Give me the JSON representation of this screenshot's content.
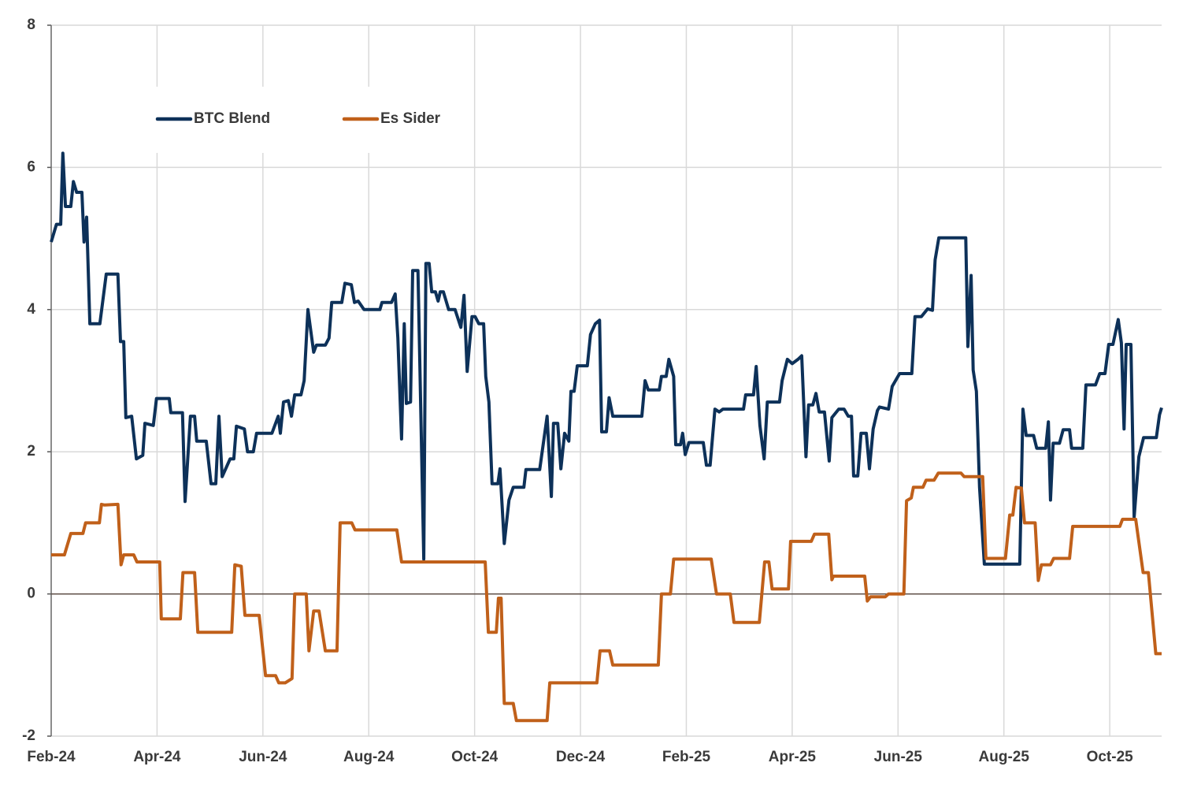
{
  "chart_data": {
    "type": "line",
    "xlim": [
      0,
      20.98
    ],
    "xticks": [
      {
        "value": 0,
        "label": "Feb-24"
      },
      {
        "value": 2,
        "label": "Apr-24"
      },
      {
        "value": 4,
        "label": "Jun-24"
      },
      {
        "value": 6,
        "label": "Aug-24"
      },
      {
        "value": 8,
        "label": "Oct-24"
      },
      {
        "value": 10,
        "label": "Dec-24"
      },
      {
        "value": 12,
        "label": "Feb-25"
      },
      {
        "value": 14,
        "label": "Apr-25"
      },
      {
        "value": 16,
        "label": "Jun-25"
      },
      {
        "value": 18,
        "label": "Aug-25"
      },
      {
        "value": 20,
        "label": "Oct-25"
      }
    ],
    "ylim": [
      -2,
      8
    ],
    "yticks": [
      -2,
      0,
      2,
      4,
      6,
      8
    ],
    "grid": true,
    "series": [
      {
        "name": "BTC Blend",
        "color": "#0d3159",
        "x": [
          0,
          0.1,
          0.18,
          0.22,
          0.27,
          0.37,
          0.42,
          0.48,
          0.58,
          0.62,
          0.67,
          0.73,
          0.92,
          1.04,
          1.26,
          1.31,
          1.37,
          1.41,
          1.52,
          1.61,
          1.73,
          1.77,
          1.93,
          1.99,
          2.23,
          2.26,
          2.48,
          2.53,
          2.63,
          2.71,
          2.75,
          2.93,
          3.02,
          3.11,
          3.17,
          3.23,
          3.38,
          3.45,
          3.5,
          3.65,
          3.71,
          3.82,
          3.88,
          4.17,
          4.29,
          4.33,
          4.39,
          4.48,
          4.54,
          4.6,
          4.72,
          4.78,
          4.85,
          4.96,
          5.01,
          5.18,
          5.25,
          5.3,
          5.49,
          5.55,
          5.67,
          5.73,
          5.8,
          5.91,
          6.21,
          6.25,
          6.43,
          6.5,
          6.55,
          6.62,
          6.67,
          6.71,
          6.79,
          6.83,
          6.93,
          7.04,
          7.08,
          7.14,
          7.19,
          7.26,
          7.31,
          7.35,
          7.41,
          7.51,
          7.63,
          7.74,
          7.8,
          7.86,
          7.95,
          8.01,
          8.08,
          8.17,
          8.21,
          8.27,
          8.33,
          8.44,
          8.48,
          8.56,
          8.65,
          8.73,
          8.93,
          8.97,
          9.23,
          9.37,
          9.45,
          9.49,
          9.57,
          9.63,
          9.7,
          9.78,
          9.82,
          9.88,
          9.94,
          10.13,
          10.19,
          10.28,
          10.36,
          10.4,
          10.49,
          10.54,
          10.61,
          11.16,
          11.22,
          11.28,
          11.49,
          11.53,
          11.62,
          11.67,
          11.76,
          11.8,
          11.89,
          11.93,
          11.98,
          12.05,
          12.32,
          12.38,
          12.45,
          12.54,
          12.62,
          12.69,
          13.08,
          13.12,
          13.27,
          13.32,
          13.39,
          13.47,
          13.53,
          13.76,
          13.81,
          13.91,
          14.0,
          14.11,
          14.18,
          14.26,
          14.31,
          14.39,
          14.45,
          14.51,
          14.61,
          14.7,
          14.75,
          14.88,
          14.98,
          15.06,
          15.12,
          15.16,
          15.24,
          15.3,
          15.4,
          15.46,
          15.53,
          15.61,
          15.65,
          15.82,
          15.89,
          16.03,
          16.26,
          16.32,
          16.44,
          16.56,
          16.65,
          16.7,
          16.77,
          17.28,
          17.32,
          17.38,
          17.42,
          17.48,
          17.54,
          17.63,
          18.3,
          18.36,
          18.42,
          18.56,
          18.62,
          18.79,
          18.84,
          18.88,
          18.93,
          19.05,
          19.12,
          19.24,
          19.28,
          19.49,
          19.55,
          19.73,
          19.81,
          19.91,
          19.98,
          20.06,
          20.16,
          20.22,
          20.27,
          20.31,
          20.4,
          20.46,
          20.55,
          20.64,
          20.88,
          20.94,
          20.98
        ],
        "values": [
          4.95,
          5.2,
          5.2,
          6.2,
          5.45,
          5.45,
          5.8,
          5.65,
          5.65,
          4.95,
          5.3,
          3.8,
          3.8,
          4.5,
          4.5,
          3.55,
          3.55,
          2.48,
          2.5,
          1.9,
          1.95,
          2.4,
          2.37,
          2.75,
          2.75,
          2.55,
          2.55,
          1.3,
          2.5,
          2.5,
          2.15,
          2.15,
          1.55,
          1.55,
          2.5,
          1.65,
          1.9,
          1.9,
          2.36,
          2.32,
          2.0,
          2.0,
          2.26,
          2.26,
          2.5,
          2.26,
          2.7,
          2.72,
          2.5,
          2.8,
          2.8,
          3.0,
          4.0,
          3.4,
          3.5,
          3.5,
          3.6,
          4.1,
          4.1,
          4.37,
          4.35,
          4.1,
          4.12,
          4.0,
          4.0,
          4.1,
          4.1,
          4.22,
          3.6,
          2.18,
          3.8,
          2.68,
          2.7,
          4.55,
          4.55,
          0.49,
          4.65,
          4.65,
          4.25,
          4.25,
          4.12,
          4.25,
          4.25,
          4.0,
          4.0,
          3.75,
          4.2,
          3.13,
          3.9,
          3.9,
          3.8,
          3.8,
          3.06,
          2.7,
          1.55,
          1.55,
          1.76,
          0.71,
          1.32,
          1.5,
          1.5,
          1.75,
          1.75,
          2.5,
          1.37,
          2.4,
          2.4,
          1.76,
          2.26,
          2.15,
          2.85,
          2.85,
          3.21,
          3.21,
          3.65,
          3.8,
          3.85,
          2.28,
          2.28,
          2.76,
          2.5,
          2.5,
          3.0,
          2.87,
          2.87,
          3.06,
          3.06,
          3.3,
          3.06,
          2.1,
          2.1,
          2.26,
          1.96,
          2.13,
          2.13,
          1.81,
          1.81,
          2.6,
          2.56,
          2.6,
          2.6,
          2.8,
          2.8,
          3.2,
          2.37,
          1.9,
          2.7,
          2.7,
          3.0,
          3.3,
          3.24,
          3.3,
          3.35,
          1.93,
          2.66,
          2.66,
          2.82,
          2.56,
          2.56,
          1.87,
          2.48,
          2.6,
          2.6,
          2.5,
          2.5,
          1.66,
          1.66,
          2.26,
          2.26,
          1.76,
          2.32,
          2.58,
          2.63,
          2.6,
          2.92,
          3.1,
          3.1,
          3.9,
          3.9,
          4.01,
          3.99,
          4.7,
          5.01,
          5.01,
          3.48,
          4.48,
          3.15,
          2.85,
          1.5,
          0.42,
          0.42,
          2.6,
          2.23,
          2.23,
          2.05,
          2.05,
          2.42,
          1.32,
          2.12,
          2.12,
          2.31,
          2.31,
          2.05,
          2.05,
          2.94,
          2.94,
          3.1,
          3.1,
          3.51,
          3.51,
          3.86,
          3.53,
          2.32,
          3.51,
          3.51,
          1.08,
          1.93,
          2.2,
          2.2,
          2.52,
          2.62
        ]
      },
      {
        "name": "Es Sider",
        "color": "#c0601a",
        "x": [
          0,
          0.25,
          0.37,
          0.6,
          0.65,
          0.91,
          0.95,
          1.01,
          1.26,
          1.32,
          1.37,
          1.56,
          1.62,
          2.05,
          2.08,
          2.44,
          2.49,
          2.71,
          2.77,
          3.41,
          3.47,
          3.59,
          3.66,
          3.93,
          4.05,
          4.24,
          4.3,
          4.42,
          4.55,
          4.6,
          4.82,
          4.87,
          4.96,
          5.06,
          5.18,
          5.28,
          5.4,
          5.46,
          5.68,
          5.74,
          6.53,
          6.62,
          8.2,
          8.26,
          8.41,
          8.45,
          8.5,
          8.56,
          8.73,
          8.79,
          9.37,
          9.42,
          10.31,
          10.37,
          10.55,
          10.61,
          11.47,
          11.53,
          11.7,
          11.76,
          12.47,
          12.57,
          12.83,
          12.9,
          13.38,
          13.48,
          13.56,
          13.62,
          13.93,
          13.97,
          14.36,
          14.42,
          14.69,
          14.75,
          14.78,
          15.37,
          15.42,
          15.48,
          15.76,
          15.82,
          16.11,
          16.16,
          16.25,
          16.29,
          16.47,
          16.53,
          16.68,
          16.76,
          17.19,
          17.25,
          17.6,
          17.66,
          18.03,
          18.11,
          18.17,
          18.23,
          18.33,
          18.39,
          18.59,
          18.65,
          18.71,
          18.88,
          18.94,
          19.24,
          19.3,
          20.19,
          20.24,
          20.49,
          20.63,
          20.73,
          20.87,
          20.98
        ],
        "values": [
          0.55,
          0.55,
          0.85,
          0.85,
          1.0,
          1.0,
          1.26,
          1.25,
          1.26,
          0.41,
          0.55,
          0.55,
          0.45,
          0.45,
          -0.35,
          -0.35,
          0.3,
          0.3,
          -0.54,
          -0.54,
          0.41,
          0.39,
          -0.3,
          -0.3,
          -1.15,
          -1.15,
          -1.25,
          -1.25,
          -1.19,
          0.0,
          0.0,
          -0.8,
          -0.24,
          -0.24,
          -0.8,
          -0.8,
          -0.8,
          1.0,
          1.0,
          0.9,
          0.9,
          0.45,
          0.45,
          -0.54,
          -0.54,
          -0.06,
          -0.06,
          -1.54,
          -1.54,
          -1.78,
          -1.78,
          -1.25,
          -1.25,
          -0.8,
          -0.8,
          -1.0,
          -1.0,
          0.0,
          0.0,
          0.49,
          0.49,
          0.0,
          0.0,
          -0.4,
          -0.4,
          0.45,
          0.45,
          0.07,
          0.07,
          0.74,
          0.74,
          0.84,
          0.84,
          0.2,
          0.25,
          0.25,
          -0.1,
          -0.04,
          -0.04,
          0.0,
          0.0,
          1.31,
          1.35,
          1.5,
          1.5,
          1.6,
          1.6,
          1.7,
          1.7,
          1.65,
          1.65,
          0.5,
          0.5,
          1.11,
          1.11,
          1.5,
          1.49,
          1.0,
          1.0,
          0.19,
          0.41,
          0.41,
          0.5,
          0.5,
          0.95,
          0.95,
          1.05,
          1.05,
          0.3,
          0.3,
          -0.84,
          -0.84
        ]
      }
    ]
  }
}
